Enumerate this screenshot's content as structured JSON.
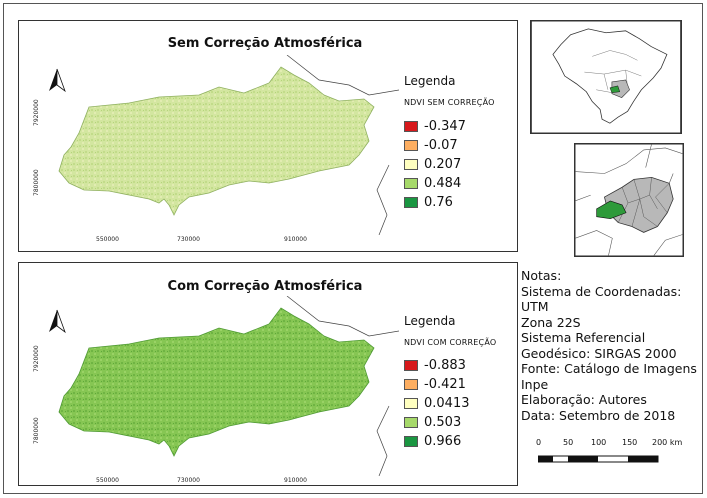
{
  "panels": {
    "top": {
      "title": "Sem Correção Atmosférica",
      "legend_title": "Legenda",
      "legend_subtitle": "NDVI SEM CORREÇÃO",
      "legend": [
        {
          "label": "-0.347",
          "color": "#d7191c"
        },
        {
          "label": "-0.07",
          "color": "#fdae61"
        },
        {
          "label": "0.207",
          "color": "#ffffc0"
        },
        {
          "label": "0.484",
          "color": "#a6d96a"
        },
        {
          "label": "0.76",
          "color": "#1a9641"
        }
      ],
      "x_ticks": [
        "550000",
        "730000",
        "910000"
      ],
      "y_ticks": [
        "7920000",
        "7800000"
      ]
    },
    "bottom": {
      "title": "Com Correção Atmosférica",
      "legend_title": "Legenda",
      "legend_subtitle": "NDVI COM CORREÇÃO",
      "legend": [
        {
          "label": "-0.883",
          "color": "#d7191c"
        },
        {
          "label": "-0.421",
          "color": "#fdae61"
        },
        {
          "label": "0.0413",
          "color": "#ffffc0"
        },
        {
          "label": "0.503",
          "color": "#a6d96a"
        },
        {
          "label": "0.966",
          "color": "#1a9641"
        }
      ],
      "x_ticks": [
        "550000",
        "730000",
        "910000"
      ],
      "y_ticks": [
        "7920000",
        "7800000"
      ]
    }
  },
  "notes": [
    "Notas:",
    "Sistema de Coordenadas: UTM",
    "Zona 22S",
    "Sistema Referencial",
    "Geodésico: SIRGAS 2000",
    "Fonte: Catálogo de Imagens",
    "Inpe",
    "Elaboração: Autores",
    "Data: Setembro de 2018"
  ],
  "scalebar": {
    "labels": [
      "0",
      "50",
      "100",
      "150",
      "200 km"
    ]
  },
  "colors": {
    "top_fill": "#cfe39a",
    "bottom_fill": "#7dc24f",
    "highlight": "#2e9a3a",
    "state_gray": "#b8b8b8"
  },
  "icons": [
    "north-arrow-icon"
  ]
}
